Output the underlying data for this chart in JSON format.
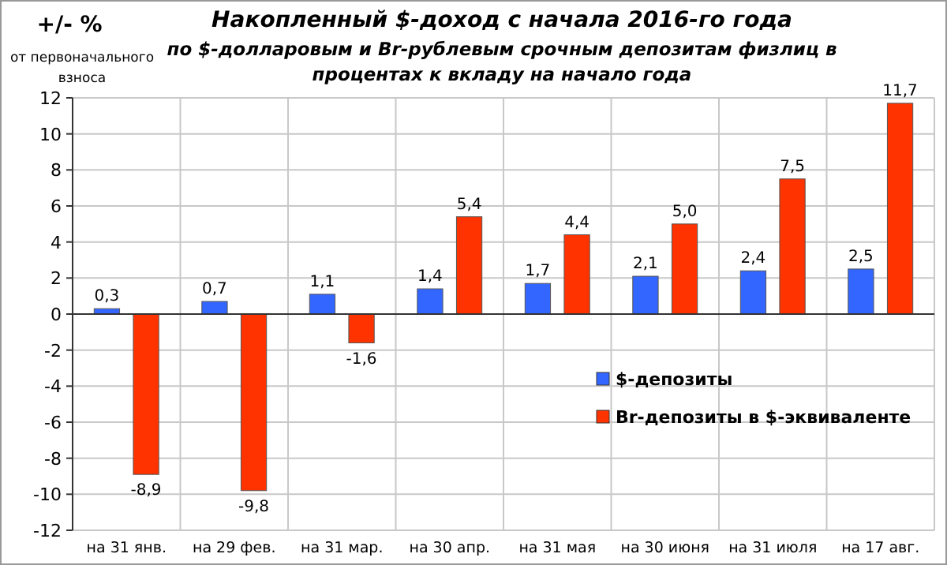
{
  "chart_data": {
    "type": "bar",
    "title": "Накопленный  $-доход с начала 2016-го года",
    "subtitle": "по $-долларовым и Br-рублевым срочным депозитам физлиц в процентах к вкладу на начало года",
    "ylabel": "+/- %",
    "annotations": [
      "от первоначального взноса"
    ],
    "categories": [
      "на 31 янв.",
      "на 29 фев.",
      "на 31 мар.",
      "на 30 апр.",
      "на 31 мая",
      "на 30 июня",
      "на 31 июля",
      "на 17 авг."
    ],
    "series": [
      {
        "name": "$-депозиты",
        "color": "#3366ff",
        "values": [
          0.3,
          0.7,
          1.1,
          1.4,
          1.7,
          2.1,
          2.4,
          2.5
        ],
        "value_labels": [
          "0,3",
          "0,7",
          "1,1",
          "1,4",
          "1,7",
          "2,1",
          "2,4",
          "2,5"
        ]
      },
      {
        "name": "Br-депозиты в $-эквиваленте",
        "color": "#ff3300",
        "values": [
          -8.9,
          -9.8,
          -1.6,
          5.4,
          4.4,
          5.0,
          7.5,
          11.7
        ],
        "value_labels": [
          "-8,9",
          "-9,8",
          "-1,6",
          "5,4",
          "4,4",
          "5,0",
          "7,5",
          "11,7"
        ]
      }
    ],
    "ylim": [
      -12,
      12
    ],
    "yticks": [
      -12,
      -10,
      -8,
      -6,
      -4,
      -2,
      0,
      2,
      4,
      6,
      8,
      10,
      12
    ],
    "grid": true,
    "legend": "bottom right"
  }
}
